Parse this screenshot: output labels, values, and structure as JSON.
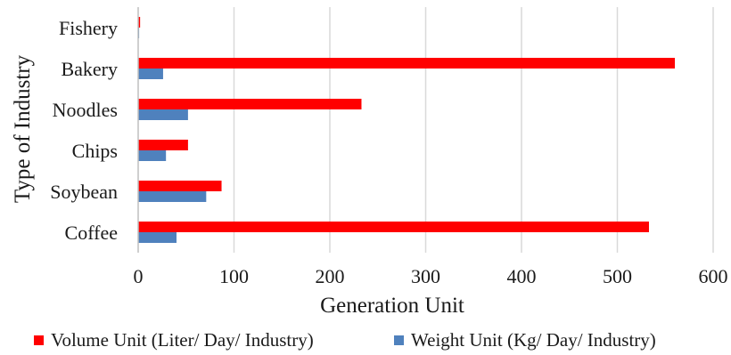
{
  "chart_data": {
    "type": "bar",
    "orientation": "horizontal",
    "categories": [
      "Coffee",
      "Soybean",
      "Chips",
      "Noodles",
      "Bakery",
      "Fishery"
    ],
    "series": [
      {
        "name": "Volume Unit (Liter/ Day/ Industry)",
        "color": "#ff0000",
        "values": [
          533,
          87,
          52,
          233,
          560,
          2
        ]
      },
      {
        "name": "Weight Unit (Kg/ Day/ Industry)",
        "color": "#4f81bd",
        "values": [
          40,
          71,
          29,
          52,
          26,
          1
        ]
      }
    ],
    "xlabel": "Generation Unit",
    "ylabel": "Type of Industry",
    "xlim": [
      0,
      600
    ],
    "xticks": [
      0,
      100,
      200,
      300,
      400,
      500,
      600
    ],
    "grid": true,
    "legend_position": "bottom"
  }
}
